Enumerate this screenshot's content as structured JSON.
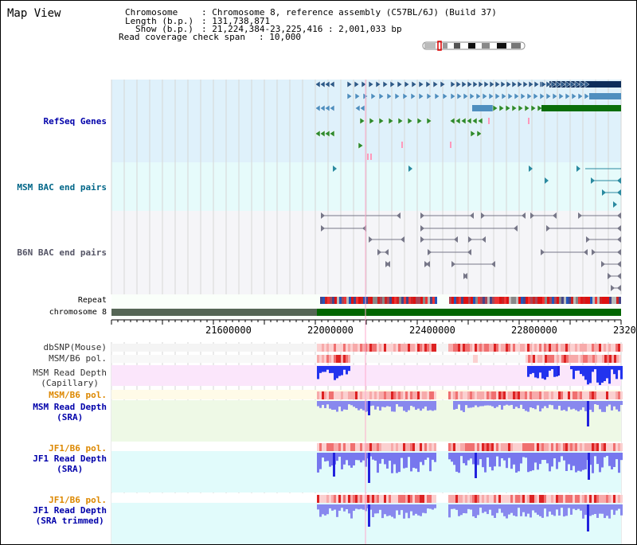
{
  "app": {
    "title": "Map View"
  },
  "info": {
    "chromosome_key": "Chromosome",
    "chromosome_val": ": Chromosome 8, reference assembly (C57BL/6J) (Build 37)",
    "length_key": "Length (b.p.)",
    "length_val": ": 131,738,871",
    "show_key": "Show (b.p.)",
    "show_val": ": 21,224,384-23,225,416 : 2,001,033 bp",
    "coverage_key": "Read coverage check span",
    "coverage_val": ": 10,000"
  },
  "tracks": {
    "refseq": "RefSeq Genes",
    "msm_bac": "MSM BAC end pairs",
    "b6n_bac": "B6N BAC end pairs",
    "repeat": "Repeat",
    "chromosome": "chromosome 8",
    "dbsnp": "dbSNP(Mouse)",
    "msm_b6_pol_1": "MSM/B6 pol.",
    "msm_read_depth_cap": "MSM Read Depth\n(Capillary)",
    "msm_b6_pol_2": "MSM/B6 pol.",
    "msm_read_depth_sra": "MSM Read Depth\n(SRA)",
    "jf1_b6_pol_1": "JF1/B6 pol.",
    "jf1_read_depth_sra": "JF1 Read Depth\n(SRA)",
    "jf1_b6_pol_2": "JF1/B6 pol.",
    "jf1_read_depth_trim": "JF1 Read Depth\n(SRA trimmed)"
  },
  "ruler": {
    "ticks": [
      "21600000",
      "22000000",
      "22400000",
      "22800000",
      "2320"
    ]
  },
  "colors": {
    "refseq_label": "#0000aa",
    "msm_bac_label": "#006688",
    "b6n_bac_label": "#555566",
    "orange_label": "#dd8800",
    "blue_label": "#0000aa",
    "gray_label": "#333333"
  }
}
